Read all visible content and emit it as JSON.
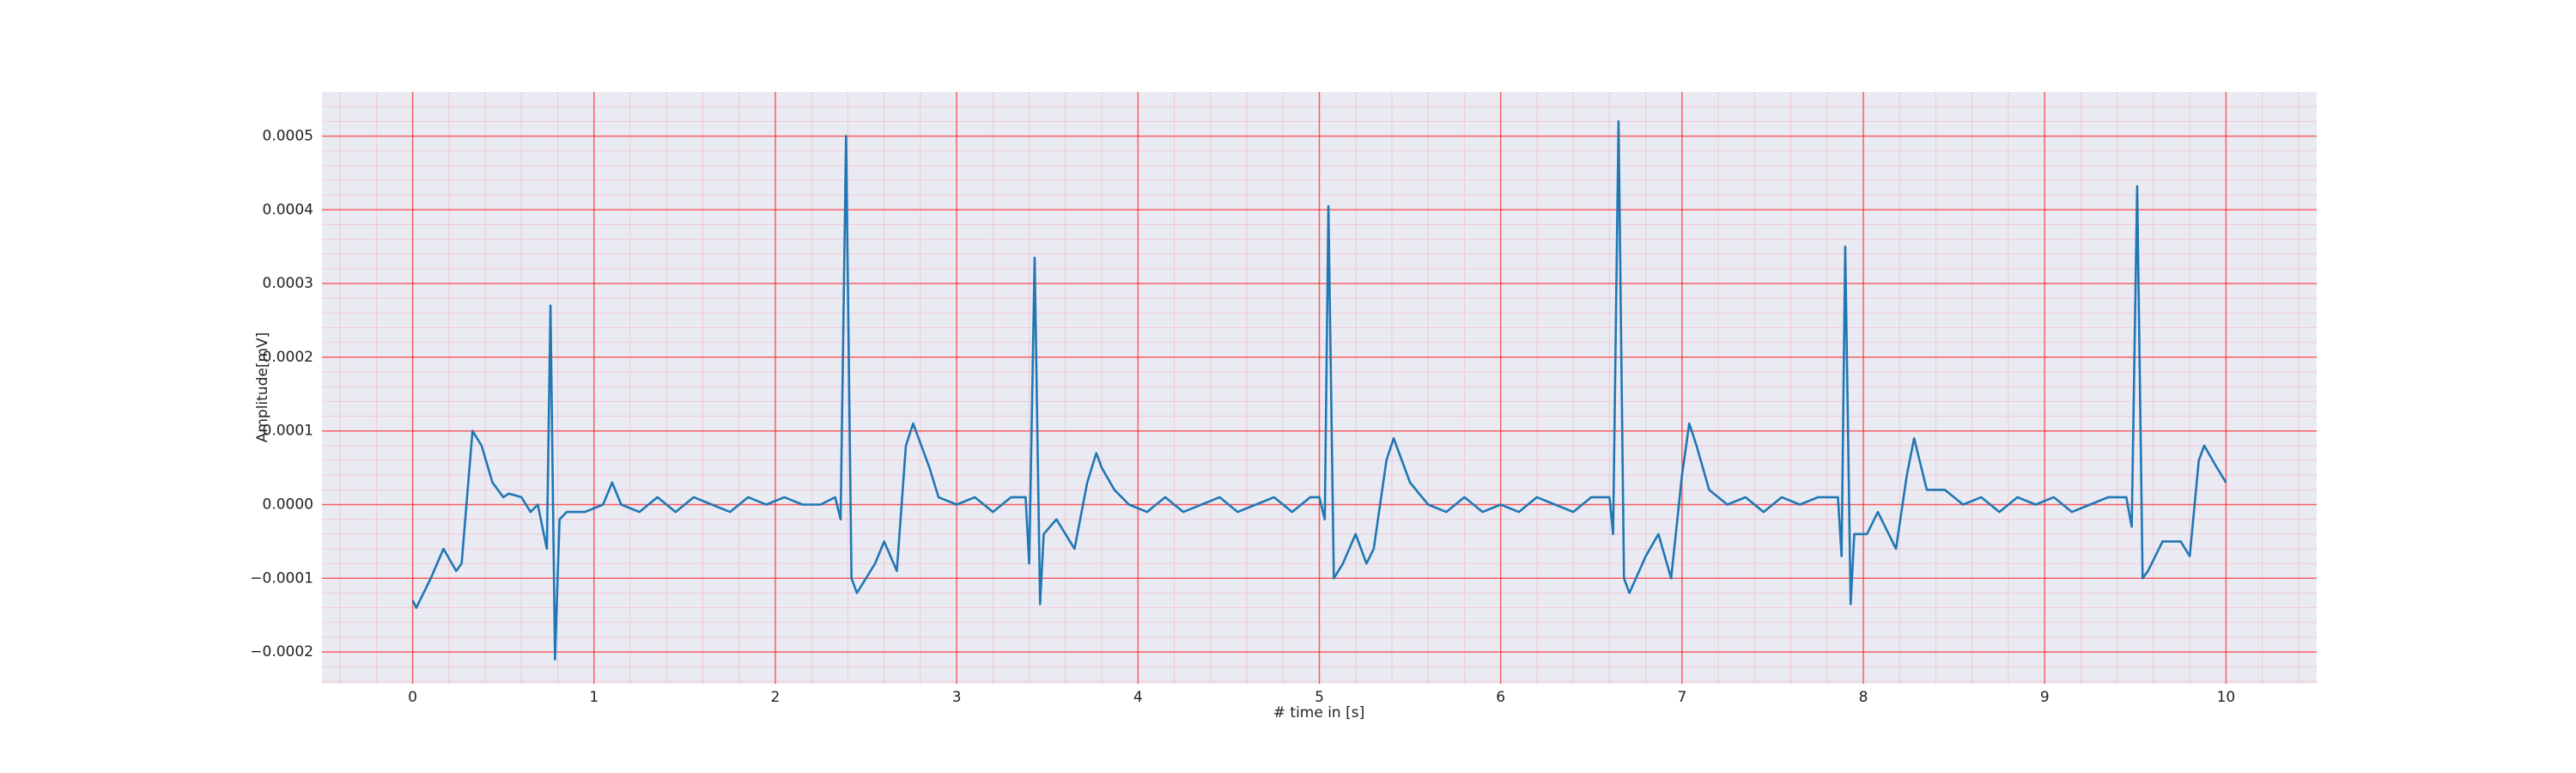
{
  "chart_data": {
    "type": "line",
    "xlabel": "# time in [s]",
    "ylabel": "Amplitude[mV]",
    "color": "#1f77b4",
    "x": [
      0,
      0.02,
      0.1,
      0.17,
      0.24,
      0.27,
      0.33,
      0.38,
      0.44,
      0.5,
      0.53,
      0.6,
      0.65,
      0.69,
      0.74,
      0.76,
      0.785,
      0.81,
      0.85,
      0.95,
      1.05,
      1.1,
      1.15,
      1.25,
      1.35,
      1.45,
      1.55,
      1.65,
      1.75,
      1.85,
      1.95,
      2.05,
      2.15,
      2.25,
      2.33,
      2.36,
      2.39,
      2.42,
      2.45,
      2.55,
      2.6,
      2.67,
      2.72,
      2.76,
      2.85,
      2.9,
      3.0,
      3.1,
      3.2,
      3.3,
      3.38,
      3.4,
      3.43,
      3.46,
      3.48,
      3.55,
      3.65,
      3.72,
      3.77,
      3.8,
      3.87,
      3.95,
      4.05,
      4.15,
      4.25,
      4.35,
      4.45,
      4.55,
      4.65,
      4.75,
      4.85,
      4.95,
      5.0,
      5.03,
      5.05,
      5.08,
      5.13,
      5.2,
      5.26,
      5.3,
      5.37,
      5.41,
      5.5,
      5.6,
      5.7,
      5.8,
      5.9,
      6.0,
      6.1,
      6.2,
      6.3,
      6.4,
      6.5,
      6.6,
      6.62,
      6.65,
      6.68,
      6.71,
      6.8,
      6.87,
      6.94,
      7.0,
      7.04,
      7.08,
      7.15,
      7.25,
      7.35,
      7.45,
      7.55,
      7.65,
      7.75,
      7.86,
      7.88,
      7.9,
      7.93,
      7.95,
      8.02,
      8.08,
      8.18,
      8.24,
      8.28,
      8.35,
      8.45,
      8.55,
      8.65,
      8.75,
      8.85,
      8.95,
      9.05,
      9.15,
      9.25,
      9.35,
      9.45,
      9.48,
      9.51,
      9.54,
      9.57,
      9.65,
      9.75,
      9.8,
      9.85,
      9.88,
      9.95,
      10.0
    ],
    "values": [
      -0.00013,
      -0.00014,
      -0.0001,
      -6e-05,
      -9e-05,
      -8e-05,
      0.0001,
      8e-05,
      3e-05,
      1e-05,
      1.5e-05,
      1e-05,
      -1e-05,
      0,
      -6e-05,
      0.00027,
      -0.00021,
      -2e-05,
      -1e-05,
      -1e-05,
      0,
      3e-05,
      0,
      -1e-05,
      1e-05,
      -1e-05,
      1e-05,
      0,
      -1e-05,
      1e-05,
      0,
      1e-05,
      0,
      0,
      1e-05,
      -2e-05,
      0.0005,
      -0.0001,
      -0.00012,
      -8e-05,
      -5e-05,
      -9e-05,
      8e-05,
      0.00011,
      5e-05,
      1e-05,
      0,
      1e-05,
      -1e-05,
      1e-05,
      1e-05,
      -8e-05,
      0.000335,
      -0.000135,
      -4e-05,
      -2e-05,
      -6e-05,
      3e-05,
      7e-05,
      5e-05,
      2e-05,
      0,
      -1e-05,
      1e-05,
      -1e-05,
      0,
      1e-05,
      -1e-05,
      0,
      1e-05,
      -1e-05,
      1e-05,
      1e-05,
      -2e-05,
      0.000405,
      -0.0001,
      -8e-05,
      -4e-05,
      -8e-05,
      -6e-05,
      6e-05,
      9e-05,
      3e-05,
      0,
      -1e-05,
      1e-05,
      -1e-05,
      0,
      -1e-05,
      1e-05,
      0,
      -1e-05,
      1e-05,
      1e-05,
      -4e-05,
      0.00052,
      -0.0001,
      -0.00012,
      -7e-05,
      -4e-05,
      -0.0001,
      4e-05,
      0.00011,
      8e-05,
      2e-05,
      0,
      1e-05,
      -1e-05,
      1e-05,
      0,
      1e-05,
      1e-05,
      -7e-05,
      0.00035,
      -0.000135,
      -4e-05,
      -4e-05,
      -1e-05,
      -6e-05,
      4e-05,
      9e-05,
      2e-05,
      2e-05,
      0,
      1e-05,
      -1e-05,
      1e-05,
      0,
      1e-05,
      -1e-05,
      0,
      1e-05,
      1e-05,
      -3e-05,
      0.000432,
      -0.0001,
      -9e-05,
      -5e-05,
      -5e-05,
      -7e-05,
      6e-05,
      8e-05,
      5e-05,
      3e-05
    ],
    "xlim": [
      -0.5,
      10.5
    ],
    "xticks": [
      0,
      1,
      2,
      3,
      4,
      5,
      6,
      7,
      8,
      9,
      10
    ],
    "ylim": [
      -0.000243,
      0.00056
    ],
    "yticks": [
      {
        "value": -0.0002,
        "label": "−0.0002"
      },
      {
        "value": -0.0001,
        "label": "−0.0001"
      },
      {
        "value": 0,
        "label": "0.0000"
      },
      0.0001,
      0.0002,
      0.0003,
      0.0004,
      0.0005
    ],
    "grid": true,
    "minor_grid": true
  }
}
